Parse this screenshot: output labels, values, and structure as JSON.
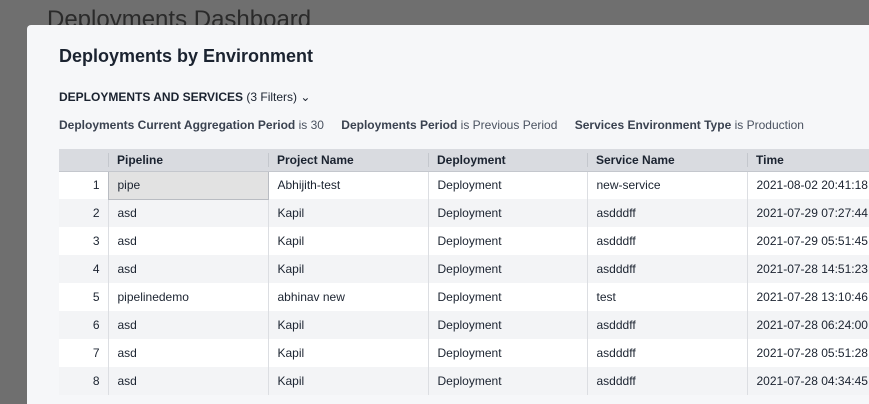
{
  "background_title": "Deployments Dashboard",
  "modal": {
    "title": "Deployments by Environment",
    "source_label": "DEPLOYMENTS AND SERVICES",
    "filter_count": "(3 Filters)",
    "filters": [
      {
        "field": "Deployments Current Aggregation Period",
        "text": "is 30"
      },
      {
        "field": "Deployments Period",
        "text": "is Previous Period"
      },
      {
        "field": "Services Environment Type",
        "text": "is Production"
      }
    ]
  },
  "table": {
    "columns": [
      "Pipeline",
      "Project Name",
      "Deployment",
      "Service Name",
      "Time"
    ],
    "rows": [
      [
        "1",
        "pipe",
        "Abhijith-test",
        "Deployment",
        "new-service",
        "2021-08-02 20:41:18"
      ],
      [
        "2",
        "asd",
        "Kapil",
        "Deployment",
        "asdddff",
        "2021-07-29 07:27:44"
      ],
      [
        "3",
        "asd",
        "Kapil",
        "Deployment",
        "asdddff",
        "2021-07-29 05:51:45"
      ],
      [
        "4",
        "asd",
        "Kapil",
        "Deployment",
        "asdddff",
        "2021-07-28 14:51:23"
      ],
      [
        "5",
        "pipelinedemo",
        "abhinav new",
        "Deployment",
        "test",
        "2021-07-28 13:10:46"
      ],
      [
        "6",
        "asd",
        "Kapil",
        "Deployment",
        "asdddff",
        "2021-07-28 06:24:00"
      ],
      [
        "7",
        "asd",
        "Kapil",
        "Deployment",
        "asdddff",
        "2021-07-28 05:51:28"
      ],
      [
        "8",
        "asd",
        "Kapil",
        "Deployment",
        "asdddff",
        "2021-07-28 04:34:45"
      ]
    ]
  }
}
